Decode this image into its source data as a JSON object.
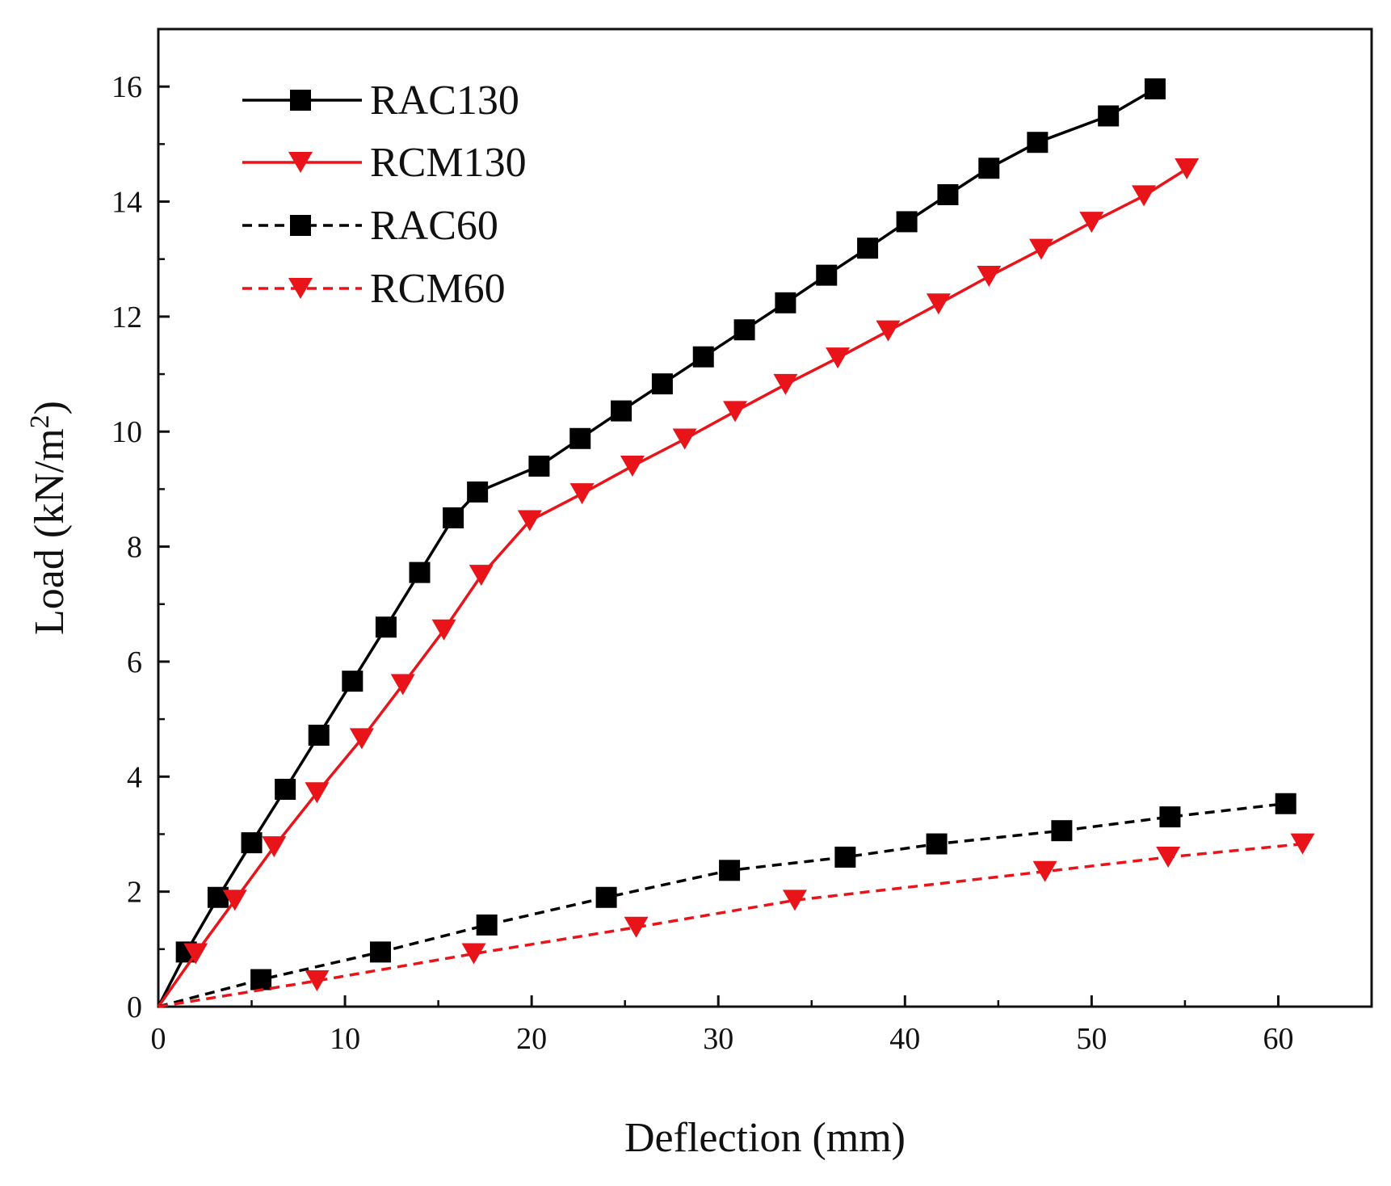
{
  "chart_data": {
    "type": "line",
    "title": "",
    "xlabel": "Deflection (mm)",
    "ylabel_main": "Load (kN/m",
    "ylabel_sup": "2",
    "ylabel_close": ")",
    "xlim": [
      0,
      65
    ],
    "ylim": [
      0,
      17
    ],
    "xticks": [
      0,
      10,
      20,
      30,
      40,
      50,
      60
    ],
    "yticks": [
      0,
      2,
      4,
      6,
      8,
      10,
      12,
      14,
      16
    ],
    "grid": false,
    "legend_position": "top-left",
    "series": [
      {
        "name": "RAC130",
        "color": "#000000",
        "line_style": "solid",
        "marker": "square",
        "points": [
          [
            0,
            0
          ],
          [
            1.5,
            0.95
          ],
          [
            3.2,
            1.9
          ],
          [
            5,
            2.85
          ],
          [
            6.8,
            3.78
          ],
          [
            8.6,
            4.72
          ],
          [
            10.4,
            5.66
          ],
          [
            12.2,
            6.6
          ],
          [
            14,
            7.55
          ],
          [
            15.8,
            8.5
          ],
          [
            17.1,
            8.95
          ],
          [
            20.4,
            9.4
          ],
          [
            22.6,
            9.88
          ],
          [
            24.8,
            10.36
          ],
          [
            27,
            10.83
          ],
          [
            29.2,
            11.3
          ],
          [
            31.4,
            11.77
          ],
          [
            33.6,
            12.24
          ],
          [
            35.8,
            12.72
          ],
          [
            38,
            13.19
          ],
          [
            40.1,
            13.65
          ],
          [
            42.3,
            14.12
          ],
          [
            44.5,
            14.58
          ],
          [
            47.1,
            15.03
          ],
          [
            50.9,
            15.49
          ],
          [
            53.4,
            15.96
          ]
        ]
      },
      {
        "name": "RCM130",
        "color": "#e8141a",
        "line_style": "solid",
        "marker": "triangle-down",
        "points": [
          [
            0,
            0
          ],
          [
            2,
            0.92
          ],
          [
            4.1,
            1.85
          ],
          [
            6.2,
            2.78
          ],
          [
            8.5,
            3.72
          ],
          [
            10.9,
            4.66
          ],
          [
            13.1,
            5.6
          ],
          [
            15.3,
            6.55
          ],
          [
            17.3,
            7.5
          ],
          [
            19.9,
            8.45
          ],
          [
            22.7,
            8.92
          ],
          [
            25.4,
            9.4
          ],
          [
            28.2,
            9.87
          ],
          [
            30.9,
            10.35
          ],
          [
            33.6,
            10.82
          ],
          [
            36.4,
            11.28
          ],
          [
            39.1,
            11.75
          ],
          [
            41.8,
            12.22
          ],
          [
            44.5,
            12.7
          ],
          [
            47.3,
            13.17
          ],
          [
            50,
            13.64
          ],
          [
            52.8,
            14.1
          ],
          [
            55.1,
            14.57
          ]
        ]
      },
      {
        "name": "RAC60",
        "color": "#000000",
        "line_style": "dashed",
        "marker": "square",
        "points": [
          [
            0,
            0
          ],
          [
            5.5,
            0.47
          ],
          [
            11.9,
            0.95
          ],
          [
            17.6,
            1.42
          ],
          [
            24,
            1.9
          ],
          [
            30.6,
            2.37
          ],
          [
            36.8,
            2.6
          ],
          [
            41.7,
            2.83
          ],
          [
            48.4,
            3.06
          ],
          [
            54.2,
            3.3
          ],
          [
            60.4,
            3.53
          ]
        ]
      },
      {
        "name": "RCM60",
        "color": "#e8141a",
        "line_style": "dashed",
        "marker": "triangle-down",
        "points": [
          [
            0,
            0
          ],
          [
            8.5,
            0.45
          ],
          [
            16.9,
            0.92
          ],
          [
            25.6,
            1.38
          ],
          [
            34.1,
            1.85
          ],
          [
            47.5,
            2.35
          ],
          [
            54.1,
            2.6
          ],
          [
            61.3,
            2.83
          ]
        ]
      }
    ]
  }
}
